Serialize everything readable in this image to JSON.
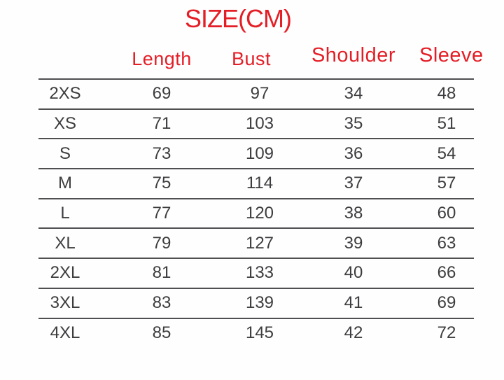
{
  "title": "SIZE(CM)",
  "unit": "CM",
  "colors": {
    "accent_red": "#e41e26",
    "line_gray": "#4f4f51",
    "text_gray": "#3d3d3f",
    "background": "#fefefe"
  },
  "chart_data": {
    "type": "table",
    "title": "SIZE(CM)",
    "row_header_field": "size",
    "columns": [
      "Length",
      "Bust",
      "Shoulder",
      "Sleeve"
    ],
    "rows": [
      {
        "size": "2XS",
        "length": 69,
        "bust": 97,
        "shoulder": 34,
        "sleeve": 48
      },
      {
        "size": "XS",
        "length": 71,
        "bust": 103,
        "shoulder": 35,
        "sleeve": 51
      },
      {
        "size": "S",
        "length": 73,
        "bust": 109,
        "shoulder": 36,
        "sleeve": 54
      },
      {
        "size": "M",
        "length": 75,
        "bust": 114,
        "shoulder": 37,
        "sleeve": 57
      },
      {
        "size": "L",
        "length": 77,
        "bust": 120,
        "shoulder": 38,
        "sleeve": 60
      },
      {
        "size": "XL",
        "length": 79,
        "bust": 127,
        "shoulder": 39,
        "sleeve": 63
      },
      {
        "size": "2XL",
        "length": 81,
        "bust": 133,
        "shoulder": 40,
        "sleeve": 66
      },
      {
        "size": "3XL",
        "length": 83,
        "bust": 139,
        "shoulder": 41,
        "sleeve": 69
      },
      {
        "size": "4XL",
        "length": 85,
        "bust": 145,
        "shoulder": 42,
        "sleeve": 72
      }
    ]
  }
}
